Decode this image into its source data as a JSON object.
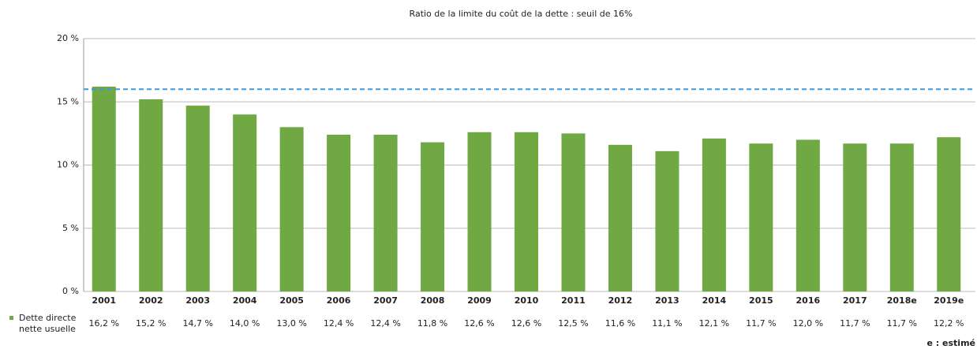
{
  "chart_data": {
    "type": "bar",
    "title": "Ratio de la limite du coût de la dette : seuil de 16%",
    "categories": [
      "2001",
      "2002",
      "2003",
      "2004",
      "2005",
      "2006",
      "2007",
      "2008",
      "2009",
      "2010",
      "2011",
      "2012",
      "2013",
      "2014",
      "2015",
      "2016",
      "2017",
      "2018e",
      "2019e"
    ],
    "series": [
      {
        "name": "Dette directe nette usuelle",
        "color": "#70a844",
        "values": [
          16.2,
          15.2,
          14.7,
          14.0,
          13.0,
          12.4,
          12.4,
          11.8,
          12.6,
          12.6,
          12.5,
          11.6,
          11.1,
          12.1,
          11.7,
          12.0,
          11.7,
          11.7,
          12.2
        ],
        "value_labels": [
          "16,2 %",
          "15,2 %",
          "14,7 %",
          "14,0 %",
          "13,0 %",
          "12,4 %",
          "12,4 %",
          "11,8 %",
          "12,6 %",
          "12,6 %",
          "12,5 %",
          "11,6 %",
          "11,1 %",
          "12,1 %",
          "11,7 %",
          "12,0 %",
          "11,7 %",
          "11,7 %",
          "12,2 %"
        ]
      }
    ],
    "threshold": 16,
    "threshold_color": "#3a9ad9",
    "ylim": [
      0,
      20
    ],
    "yticks": [
      {
        "value": 0,
        "label": "0 %"
      },
      {
        "value": 5,
        "label": "5 %"
      },
      {
        "value": 10,
        "label": "10 %"
      },
      {
        "value": 15,
        "label": "15 %"
      },
      {
        "value": 20,
        "label": "20 %"
      }
    ],
    "grid": true,
    "footnote": "e : estimé"
  }
}
